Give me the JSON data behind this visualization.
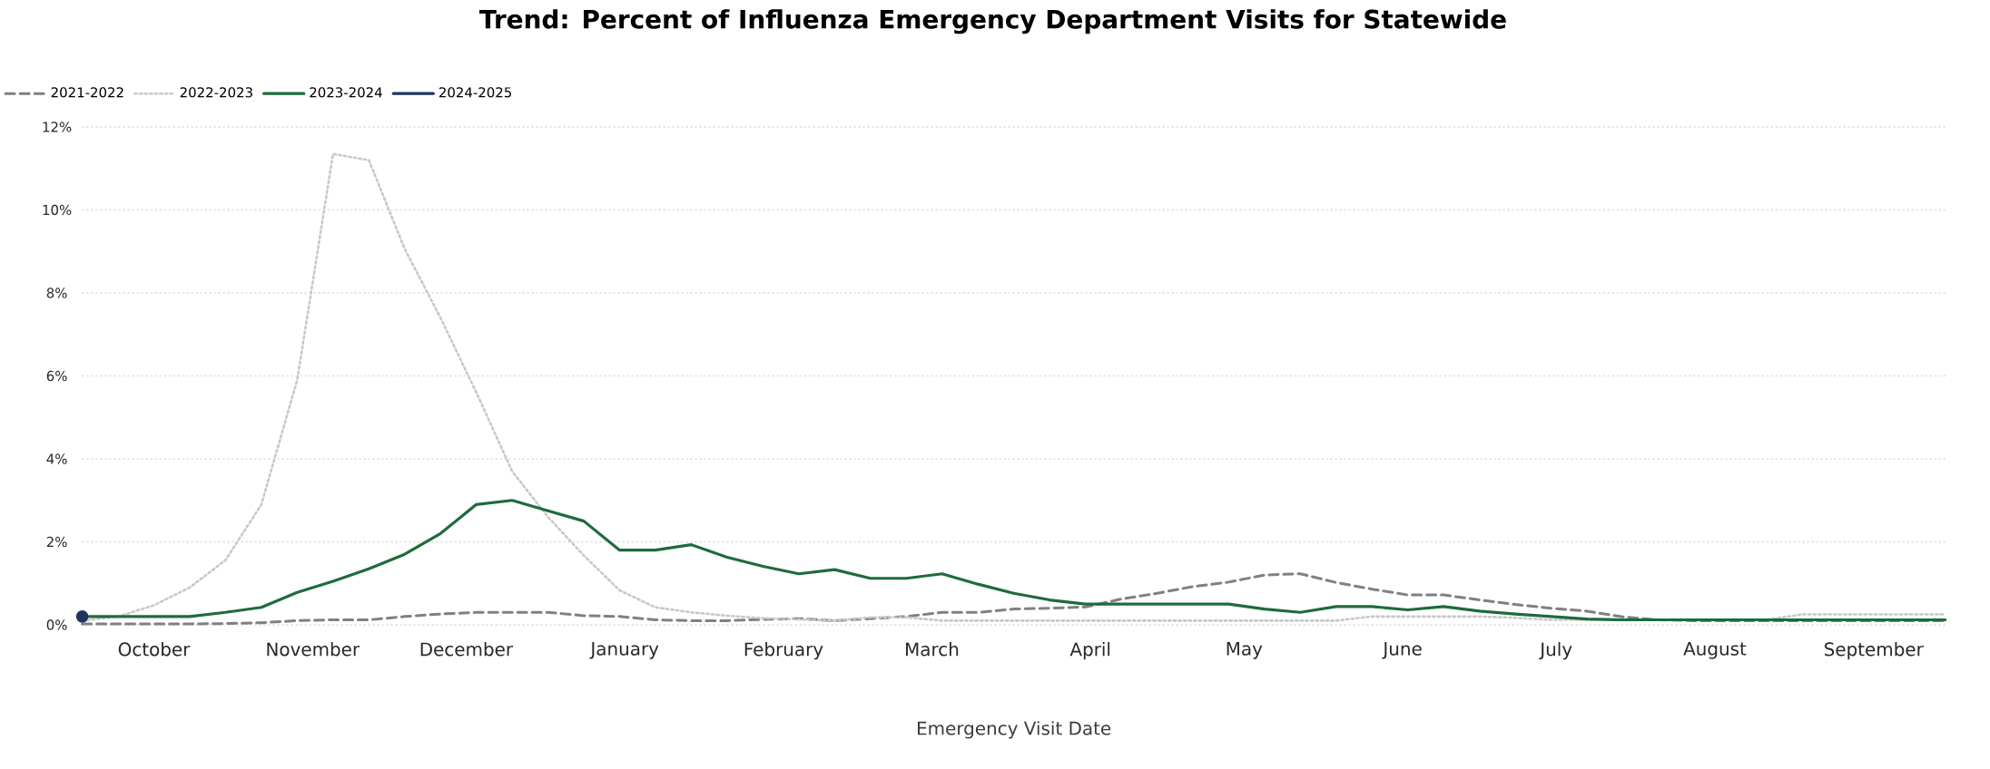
{
  "chart_data": {
    "type": "line",
    "title": "Trend: Percent of Influenza Emergency Department Visits for Statewide",
    "xlabel": "Emergency Visit Date",
    "x": [
      "2023-10-01",
      "2023-10-08",
      "2023-10-15",
      "2023-10-22",
      "2023-10-29",
      "2023-11-05",
      "2023-11-12",
      "2023-11-19",
      "2023-11-26",
      "2023-12-03",
      "2023-12-10",
      "2023-12-17",
      "2023-12-24",
      "2023-12-31",
      "2024-01-07",
      "2024-01-14",
      "2024-01-21",
      "2024-01-28",
      "2024-02-04",
      "2024-02-11",
      "2024-02-18",
      "2024-02-25",
      "2024-03-03",
      "2024-03-10",
      "2024-03-17",
      "2024-03-24",
      "2024-03-31",
      "2024-04-07",
      "2024-04-14",
      "2024-04-21",
      "2024-04-28",
      "2024-05-05",
      "2024-05-12",
      "2024-05-19",
      "2024-05-26",
      "2024-06-02",
      "2024-06-09",
      "2024-06-16",
      "2024-06-23",
      "2024-06-30",
      "2024-07-07",
      "2024-07-14",
      "2024-07-21",
      "2024-07-28",
      "2024-08-04",
      "2024-08-11",
      "2024-08-18",
      "2024-08-25",
      "2024-09-01",
      "2024-09-08",
      "2024-09-15",
      "2024-09-22",
      "2024-09-29"
    ],
    "xlim": [
      "2023-10-01",
      "2024-09-29"
    ],
    "xticks": [
      {
        "value": "2023-10-15",
        "label": "October"
      },
      {
        "value": "2023-11-15",
        "label": "November"
      },
      {
        "value": "2023-12-15",
        "label": "December"
      },
      {
        "value": "2024-01-15",
        "label": "January"
      },
      {
        "value": "2024-02-15",
        "label": "February"
      },
      {
        "value": "2024-03-15",
        "label": "March"
      },
      {
        "value": "2024-04-15",
        "label": "April"
      },
      {
        "value": "2024-05-15",
        "label": "May"
      },
      {
        "value": "2024-06-15",
        "label": "June"
      },
      {
        "value": "2024-07-15",
        "label": "July"
      },
      {
        "value": "2024-08-15",
        "label": "August"
      },
      {
        "value": "2024-09-15",
        "label": "September"
      }
    ],
    "ylim": [
      0,
      12
    ],
    "yticks": [
      {
        "value": 0,
        "label": "0%"
      },
      {
        "value": 2,
        "label": "2%"
      },
      {
        "value": 4,
        "label": "4%"
      },
      {
        "value": 6,
        "label": "6%"
      },
      {
        "value": 8,
        "label": "8%"
      },
      {
        "value": 10,
        "label": "10%"
      },
      {
        "value": 12,
        "label": "12%"
      }
    ],
    "grid": "y",
    "legend": "top left",
    "series": [
      {
        "name": "2021-2022",
        "color": "#808080",
        "line_style": "dashed",
        "values": [
          0.02,
          0.02,
          0.02,
          0.02,
          0.03,
          0.05,
          0.1,
          0.12,
          0.12,
          0.2,
          0.26,
          0.3,
          0.3,
          0.3,
          0.22,
          0.2,
          0.12,
          0.1,
          0.1,
          0.13,
          0.15,
          0.1,
          0.15,
          0.2,
          0.3,
          0.3,
          0.38,
          0.4,
          0.43,
          0.62,
          0.76,
          0.92,
          1.03,
          1.2,
          1.23,
          1.02,
          0.86,
          0.72,
          0.72,
          0.6,
          0.49,
          0.4,
          0.33,
          0.19,
          0.12,
          0.1,
          0.1,
          0.1,
          0.1,
          0.1,
          0.1,
          0.1,
          0.1
        ]
      },
      {
        "name": "2022-2023",
        "color": "#c8c8c8",
        "line_style": "dotted",
        "values": [
          0.1,
          0.2,
          0.47,
          0.9,
          1.56,
          2.9,
          5.9,
          11.35,
          11.2,
          9.06,
          7.4,
          5.6,
          3.7,
          2.6,
          1.67,
          0.83,
          0.42,
          0.3,
          0.22,
          0.16,
          0.13,
          0.1,
          0.18,
          0.18,
          0.1,
          0.1,
          0.1,
          0.1,
          0.1,
          0.1,
          0.1,
          0.1,
          0.1,
          0.1,
          0.1,
          0.1,
          0.2,
          0.2,
          0.2,
          0.2,
          0.17,
          0.12,
          0.12,
          0.12,
          0.12,
          0.12,
          0.12,
          0.12,
          0.25,
          0.25,
          0.25,
          0.25,
          0.25
        ]
      },
      {
        "name": "2023-2024",
        "color": "#1e6b3c",
        "line_style": "solid",
        "values": [
          0.2,
          0.2,
          0.2,
          0.2,
          0.3,
          0.42,
          0.78,
          1.05,
          1.35,
          1.7,
          2.2,
          2.9,
          3.0,
          2.75,
          2.5,
          1.8,
          1.8,
          1.93,
          1.63,
          1.41,
          1.23,
          1.33,
          1.12,
          1.12,
          1.23,
          0.98,
          0.76,
          0.6,
          0.5,
          0.5,
          0.5,
          0.5,
          0.5,
          0.38,
          0.3,
          0.44,
          0.44,
          0.36,
          0.44,
          0.33,
          0.26,
          0.2,
          0.14,
          0.12,
          0.12,
          0.12,
          0.12,
          0.12,
          0.12,
          0.12,
          0.12,
          0.12,
          0.12
        ]
      },
      {
        "name": "2024-2025",
        "color": "#1f3560",
        "line_style": "solid",
        "marker": "circle",
        "x": [
          "2023-10-01"
        ],
        "values": [
          0.2
        ]
      }
    ]
  }
}
